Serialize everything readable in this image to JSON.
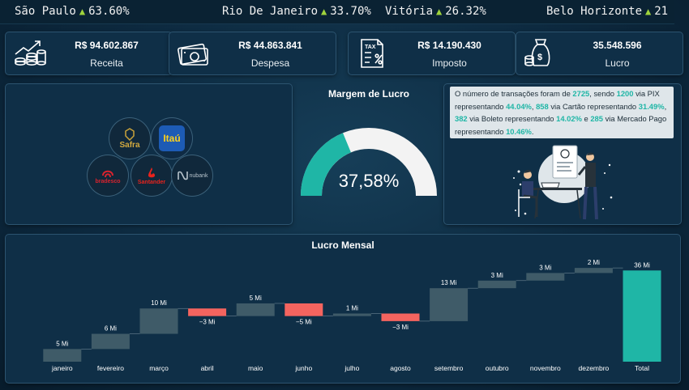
{
  "ticker": [
    {
      "city": "São Paulo",
      "value": "63.60%"
    },
    {
      "city": "Rio De Janeiro",
      "value": "33.70%"
    },
    {
      "city": "Vitória",
      "value": "26.32%"
    },
    {
      "city": "Belo Horizonte",
      "value": "21"
    }
  ],
  "kpis": [
    {
      "value": "R$ 94.602.867",
      "label": "Receita",
      "icon": "revenue-icon"
    },
    {
      "value": "R$ 44.863.841",
      "label": "Despesa",
      "icon": "money-bill-icon"
    },
    {
      "value": "R$ 14.190.430",
      "label": "Imposto",
      "icon": "tax-document-icon"
    },
    {
      "value": "35.548.596",
      "label": "Lucro",
      "icon": "money-bag-icon"
    }
  ],
  "banks": {
    "safra": "Safra",
    "itau": "Itaú",
    "bradesco": "bradesco",
    "santander": "Santander",
    "nubank": "nubank"
  },
  "gauge": {
    "title": "Margem de Lucro",
    "value_text": "37,58%",
    "fraction": 0.3758,
    "color_fill": "#1fb6a6",
    "color_track": "#f3f3f3"
  },
  "info": {
    "t1": "O número de transações foram de ",
    "n1": "2725",
    "t2": ", sendo ",
    "n2": "1200",
    "t3": " via PIX representando ",
    "n3": "44.04%",
    "t4": ", ",
    "n4": "858",
    "t5": " via Cartão representando ",
    "n5": "31.49%",
    "t6": ", ",
    "n6": "382",
    "t7": " via Boleto representando ",
    "n7": "14.02%",
    "t8": " e ",
    "n8": "285",
    "t9": " via Mercado Pago representando ",
    "n9": "10.46%",
    "t10": "."
  },
  "chart_data": {
    "type": "bar",
    "subtype": "waterfall",
    "title": "Lucro Mensal",
    "categories": [
      "janeiro",
      "fevereiro",
      "março",
      "abril",
      "maio",
      "junho",
      "julho",
      "agosto",
      "setembro",
      "outubro",
      "novembro",
      "dezembro",
      "Total"
    ],
    "values": [
      5,
      6,
      10,
      -3,
      5,
      -5,
      1,
      -3,
      13,
      3,
      3,
      2,
      36
    ],
    "labels": [
      "5 Mi",
      "6 Mi",
      "10 Mi",
      "−3 Mi",
      "5 Mi",
      "−5 Mi",
      "1 Mi",
      "−3 Mi",
      "13 Mi",
      "3 Mi",
      "3 Mi",
      "2 Mi",
      "36 Mi"
    ],
    "colors": {
      "increase": "#3f5b68",
      "decrease": "#f4645f",
      "total": "#1fb6a6"
    }
  }
}
